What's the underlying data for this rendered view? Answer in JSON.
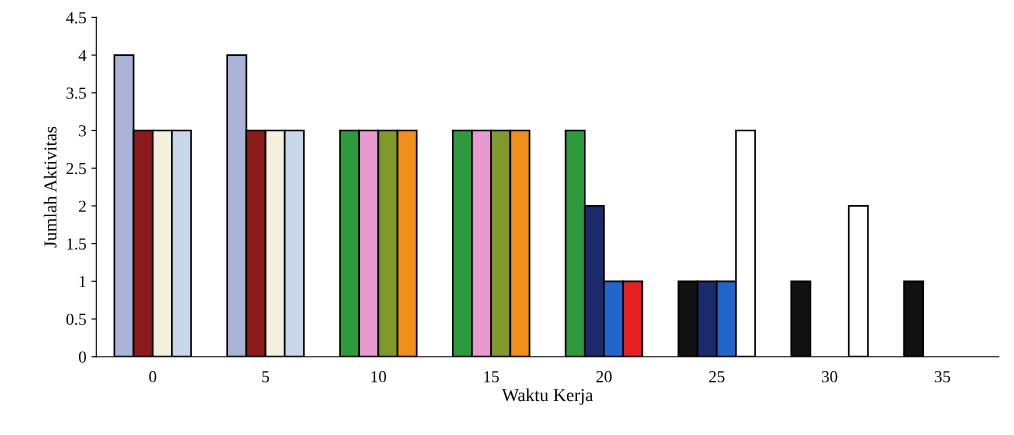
{
  "chart_data": {
    "type": "bar",
    "xlabel": "Waktu Kerja",
    "ylabel": "Jumlah Aktivitas",
    "categories": [
      "0",
      "5",
      "10",
      "15",
      "20",
      "25",
      "30",
      "35"
    ],
    "series": [
      {
        "colors": [
          "#a9b4d8",
          "#a9b4d8",
          "#2e9a3e",
          "#2e9a3e",
          "#2e9a3e",
          "#111111",
          "#111111",
          "#111111"
        ],
        "values": [
          4,
          4,
          3,
          3,
          3,
          1,
          1,
          1
        ]
      },
      {
        "colors": [
          "#8b1a1a",
          "#8b1a1a",
          "#e79ad0",
          "#e79ad0",
          "#1a2a6a",
          "#1a2a6a",
          null,
          null
        ],
        "values": [
          3,
          3,
          3,
          3,
          2,
          1,
          null,
          null
        ]
      },
      {
        "colors": [
          "#f3f0dc",
          "#f3f0dc",
          "#7f9a2a",
          "#7f9a2a",
          "#2266cc",
          "#2266cc",
          null,
          null
        ],
        "values": [
          3,
          3,
          3,
          3,
          1,
          1,
          null,
          null
        ]
      },
      {
        "colors": [
          "#c8d8ea",
          "#c8d8ea",
          "#f0901a",
          "#f0901a",
          "#e82020",
          "#ffffff",
          "#ffffff",
          null
        ],
        "values": [
          3,
          3,
          3,
          3,
          1,
          3,
          2,
          null
        ]
      }
    ],
    "ylim": [
      0,
      4.5
    ],
    "yticks": [
      0,
      0.5,
      1,
      1.5,
      2,
      2.5,
      3,
      3.5,
      4,
      4.5
    ],
    "grid": false,
    "legend": false
  }
}
